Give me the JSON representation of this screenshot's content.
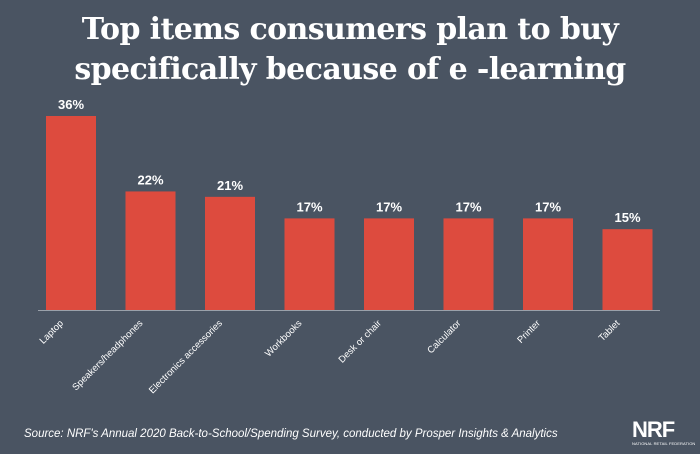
{
  "title": {
    "line1": "Top items consumers plan to buy",
    "line2": "specifically because of e -learning"
  },
  "source": "Source: NRF's Annual 2020 Back-to-School/Spending Survey, conducted by Prosper Insights & Analytics",
  "logo": {
    "brand": "NRF",
    "tagline": "NATIONAL RETAIL FEDERATION"
  },
  "colors": {
    "background": "#4a5462",
    "bar": "#dd4b3e",
    "axis": "#9aa1aa",
    "text": "#ffffff"
  },
  "chart_data": {
    "type": "bar",
    "categories": [
      "Laptop",
      "Speakers/headphones",
      "Electronics accessories",
      "Workbooks",
      "Desk or chair",
      "Calculator",
      "Printer",
      "Tablet"
    ],
    "values": [
      36,
      22,
      21,
      17,
      17,
      17,
      17,
      15
    ],
    "value_labels": [
      "36%",
      "22%",
      "21%",
      "17%",
      "17%",
      "17%",
      "17%",
      "15%"
    ],
    "unit": "%",
    "ylim": [
      0,
      36
    ],
    "grid": false,
    "legend": "none"
  }
}
